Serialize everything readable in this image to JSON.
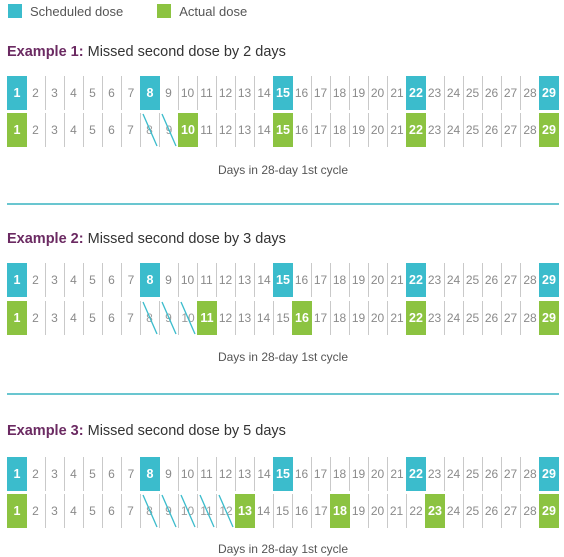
{
  "legend": {
    "scheduled_label": "Scheduled dose",
    "actual_label": "Actual dose",
    "scheduled_color": "#3bbccc",
    "actual_color": "#8cc341"
  },
  "days": [
    1,
    2,
    3,
    4,
    5,
    6,
    7,
    8,
    9,
    10,
    11,
    12,
    13,
    14,
    15,
    16,
    17,
    18,
    19,
    20,
    21,
    22,
    23,
    24,
    25,
    26,
    27,
    28,
    29
  ],
  "examples": [
    {
      "label": "Example 1:",
      "title": "Missed second dose by 2 days",
      "scheduled_days": [
        1,
        8,
        15,
        22,
        29
      ],
      "actual_days": [
        1,
        10,
        15,
        22,
        29
      ],
      "missed_days": [
        8,
        9
      ],
      "caption": "Days in 28-day 1st cycle"
    },
    {
      "label": "Example 2:",
      "title": "Missed second dose by 3 days",
      "scheduled_days": [
        1,
        8,
        15,
        22,
        29
      ],
      "actual_days": [
        1,
        11,
        16,
        22,
        29
      ],
      "missed_days": [
        8,
        9,
        10
      ],
      "caption": "Days in 28-day 1st cycle"
    },
    {
      "label": "Example 3:",
      "title": "Missed second dose by 5 days",
      "scheduled_days": [
        1,
        8,
        15,
        22,
        29
      ],
      "actual_days": [
        1,
        13,
        18,
        23,
        29
      ],
      "missed_days": [
        8,
        9,
        10,
        11,
        12
      ],
      "caption": "Days in 28-day 1st cycle"
    }
  ]
}
